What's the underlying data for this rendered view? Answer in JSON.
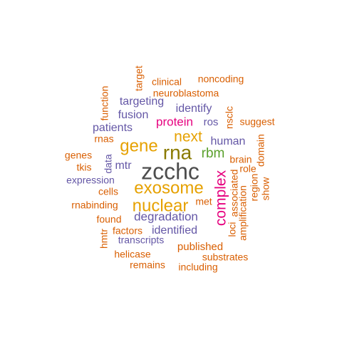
{
  "colors": {
    "dark": "#4d4d4d",
    "gold": "#e6a100",
    "olive": "#8a7a00",
    "green": "#5aa02c",
    "magenta": "#e6007e",
    "purple": "#6457a6",
    "orange": "#d95f02"
  },
  "words": [
    {
      "text": "zcchc",
      "color": "dark"
    },
    {
      "text": "rna",
      "color": "olive"
    },
    {
      "text": "exosome",
      "color": "gold"
    },
    {
      "text": "nuclear",
      "color": "gold"
    },
    {
      "text": "gene",
      "color": "gold"
    },
    {
      "text": "next",
      "color": "gold"
    },
    {
      "text": "complex",
      "color": "magenta"
    },
    {
      "text": "rbm",
      "color": "green"
    },
    {
      "text": "protein",
      "color": "magenta"
    },
    {
      "text": "degradation",
      "color": "purple"
    },
    {
      "text": "identified",
      "color": "purple"
    },
    {
      "text": "identify",
      "color": "purple"
    },
    {
      "text": "targeting",
      "color": "purple"
    },
    {
      "text": "fusion",
      "color": "purple"
    },
    {
      "text": "patients",
      "color": "purple"
    },
    {
      "text": "human",
      "color": "purple"
    },
    {
      "text": "mtr",
      "color": "purple"
    },
    {
      "text": "expression",
      "color": "purple"
    },
    {
      "text": "transcripts",
      "color": "purple"
    },
    {
      "text": "ros",
      "color": "purple"
    },
    {
      "text": "data",
      "color": "purple"
    },
    {
      "text": "neuroblastoma",
      "color": "orange"
    },
    {
      "text": "clinical",
      "color": "orange"
    },
    {
      "text": "noncoding",
      "color": "orange"
    },
    {
      "text": "target",
      "color": "orange"
    },
    {
      "text": "function",
      "color": "orange"
    },
    {
      "text": "nsclc",
      "color": "orange"
    },
    {
      "text": "suggest",
      "color": "orange"
    },
    {
      "text": "domain",
      "color": "orange"
    },
    {
      "text": "brain",
      "color": "orange"
    },
    {
      "text": "role",
      "color": "orange"
    },
    {
      "text": "region",
      "color": "orange"
    },
    {
      "text": "show",
      "color": "orange"
    },
    {
      "text": "associated",
      "color": "orange"
    },
    {
      "text": "amplification",
      "color": "orange"
    },
    {
      "text": "loci",
      "color": "orange"
    },
    {
      "text": "met",
      "color": "orange"
    },
    {
      "text": "rnas",
      "color": "orange"
    },
    {
      "text": "genes",
      "color": "orange"
    },
    {
      "text": "tkis",
      "color": "orange"
    },
    {
      "text": "cells",
      "color": "orange"
    },
    {
      "text": "rnabinding",
      "color": "orange"
    },
    {
      "text": "found",
      "color": "orange"
    },
    {
      "text": "factors",
      "color": "orange"
    },
    {
      "text": "hmtr",
      "color": "orange"
    },
    {
      "text": "helicase",
      "color": "orange"
    },
    {
      "text": "remains",
      "color": "orange"
    },
    {
      "text": "published",
      "color": "orange"
    },
    {
      "text": "substrates",
      "color": "orange"
    },
    {
      "text": "including",
      "color": "orange"
    }
  ]
}
